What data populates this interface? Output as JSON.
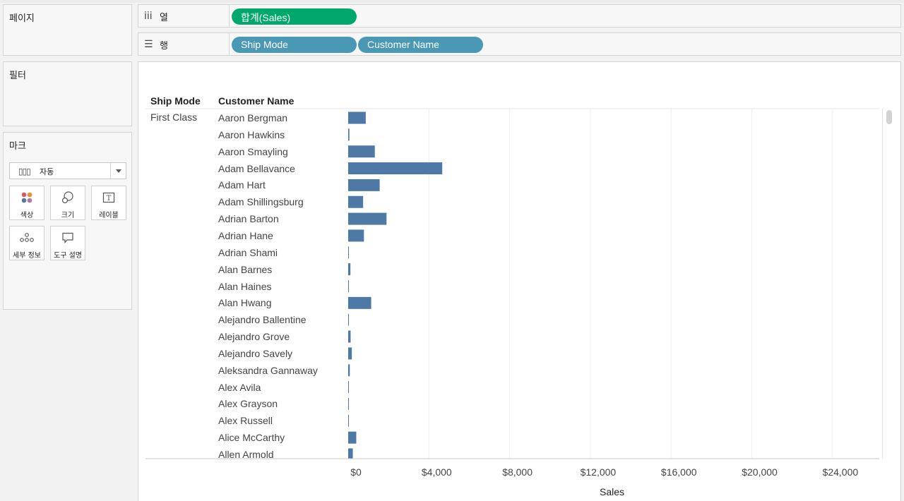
{
  "panels": {
    "pages_title": "페이지",
    "filters_title": "필터",
    "marks_title": "마크"
  },
  "marks": {
    "type_icon": "bar-chart-icon",
    "type_label": "자동",
    "cards": [
      {
        "label": "색상",
        "icon": "color-dots-icon"
      },
      {
        "label": "크기",
        "icon": "size-circles-icon"
      },
      {
        "label": "레이블",
        "icon": "label-text-icon"
      },
      {
        "label": "세부 정보",
        "icon": "detail-dots-icon"
      },
      {
        "label": "도구 설명",
        "icon": "tooltip-bubble-icon"
      }
    ]
  },
  "shelves": {
    "columns_label": "열",
    "columns_pills": [
      "합계(Sales)"
    ],
    "rows_label": "행",
    "rows_pills": [
      "Ship Mode",
      "Customer Name"
    ]
  },
  "colors": {
    "bar": "#4e79a7",
    "measure_pill": "#00a86b",
    "dimension_pill": "#4a98b4"
  },
  "chart_data": {
    "type": "bar",
    "orientation": "horizontal",
    "headers": [
      "Ship Mode",
      "Customer Name"
    ],
    "group": "First Class",
    "categories": [
      "Aaron Bergman",
      "Aaron Hawkins",
      "Aaron Smayling",
      "Adam Bellavance",
      "Adam Hart",
      "Adam Shillingsburg",
      "Adrian Barton",
      "Adrian Hane",
      "Adrian Shami",
      "Alan Barnes",
      "Alan Haines",
      "Alan Hwang",
      "Alejandro Ballentine",
      "Alejandro Grove",
      "Alejandro Savely",
      "Aleksandra Gannaway",
      "Alex Avila",
      "Alex Grayson",
      "Alex Russell",
      "Alice McCarthy",
      "Allen Armold"
    ],
    "values": [
      870,
      60,
      1320,
      4660,
      1560,
      740,
      1900,
      780,
      30,
      110,
      20,
      1140,
      20,
      120,
      180,
      80,
      30,
      20,
      20,
      400,
      230
    ],
    "xlabel": "Sales",
    "xticks": [
      "$0",
      "$4,000",
      "$8,000",
      "$12,000",
      "$16,000",
      "$20,000",
      "$24,000"
    ],
    "xlim": [
      0,
      26000
    ],
    "grid": true
  }
}
